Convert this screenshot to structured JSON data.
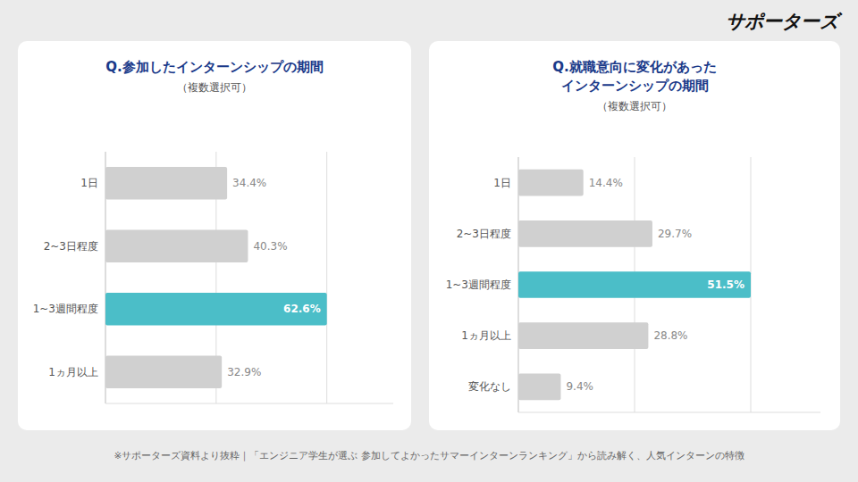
{
  "chart_data": [
    {
      "type": "bar",
      "orientation": "horizontal",
      "title": "Q.参加したインターンシップの期間",
      "subtitle": "（複数選択可）",
      "categories": [
        "1日",
        "2~3日程度",
        "1~3週間程度",
        "1ヵ月以上"
      ],
      "values": [
        34.4,
        40.3,
        62.6,
        32.9
      ],
      "value_labels": [
        "34.4%",
        "40.3%",
        "62.6%",
        "32.9%"
      ],
      "colors": [
        "#d0d0d0",
        "#d0d0d0",
        "#4bbec8",
        "#d0d0d0"
      ],
      "data_labels": true,
      "xlim": [
        0,
        81.38
      ],
      "xticks": [
        0,
        31.3,
        62.6
      ],
      "grid": true,
      "tick_labels": "y",
      "annotations": [
        "サポーターズ",
        "※サポーターズ資料より抜粋｜「エンジニア学生が選ぶ 参加してよかったサマーインターンランキング」から読み解く、人気インターンの特徴"
      ]
    },
    {
      "type": "bar",
      "orientation": "horizontal",
      "title": "Q.就職意向に変化があった\nインターンシップの期間",
      "subtitle": "（複数選択可）",
      "categories": [
        "1日",
        "2~3日程度",
        "1~3週間程度",
        "1ヵ月以上",
        "変化なし"
      ],
      "values": [
        14.4,
        29.7,
        51.5,
        28.8,
        9.4
      ],
      "value_labels": [
        "14.4%",
        "29.7%",
        "51.5%",
        "28.8%",
        "9.4%"
      ],
      "colors": [
        "#d0d0d0",
        "#d0d0d0",
        "#4bbec8",
        "#d0d0d0",
        "#d0d0d0"
      ],
      "data_labels": true,
      "xlim": [
        0,
        66.95
      ],
      "xticks": [
        0,
        25.75,
        51.5
      ],
      "grid": true,
      "tick_labels": "y"
    }
  ]
}
